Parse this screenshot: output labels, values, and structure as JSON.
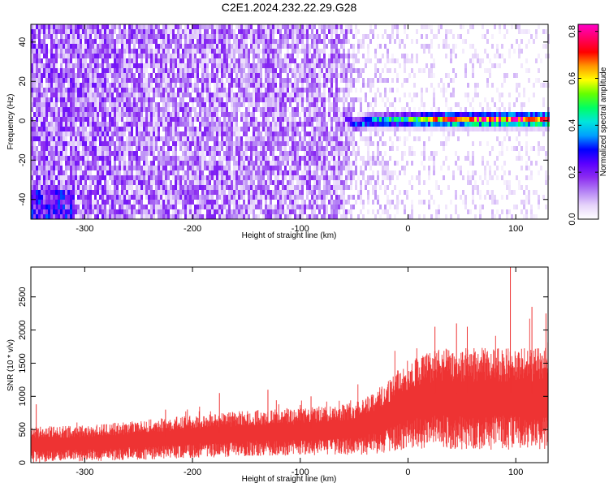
{
  "figure": {
    "title": "C2E1.2024.232.22.29.G28"
  },
  "chart_data": [
    {
      "type": "heatmap",
      "panel": "spectrogram",
      "xlabel": "Height of straight line (km)",
      "ylabel": "Frequency (Hz)",
      "xlim": [
        -350,
        130
      ],
      "ylim": [
        -50,
        49
      ],
      "xticks": [
        -300,
        -200,
        -100,
        0,
        100
      ],
      "yticks": [
        -40,
        -20,
        0,
        20,
        40
      ],
      "xtick_labels": [
        "-300",
        "-200",
        "-100",
        "0",
        "100"
      ],
      "ytick_labels": [
        "-40",
        "-20",
        "0",
        "20",
        "40"
      ],
      "colorbar": {
        "label": "Normalized spectral amplitude",
        "range": [
          0.0,
          0.83
        ],
        "ticks": [
          0.0,
          0.2,
          0.4,
          0.6,
          0.8
        ],
        "tick_labels": [
          "0.0",
          "0.2",
          "0.4",
          "0.6",
          "0.8"
        ],
        "colormap": [
          "#ffffff",
          "#e6d4fa",
          "#b482f5",
          "#8c2cf0",
          "#5a00ff",
          "#0000ff",
          "#00a0ff",
          "#00e6dc",
          "#00ff64",
          "#64ff00",
          "#ffff00",
          "#ff9600",
          "#ff0000",
          "#ff0064",
          "#ff00c8"
        ]
      },
      "features": {
        "noise_floor": [
          {
            "x": -350,
            "density": 0.95,
            "level": 0.18
          },
          {
            "x": -250,
            "density": 0.93,
            "level": 0.16
          },
          {
            "x": -150,
            "density": 0.9,
            "level": 0.15
          },
          {
            "x": -60,
            "density": 0.85,
            "level": 0.14
          },
          {
            "x": -45,
            "density": 0.5,
            "level": 0.09
          },
          {
            "x": 0,
            "density": 0.3,
            "level": 0.07
          },
          {
            "x": 130,
            "density": 0.25,
            "level": 0.06
          }
        ],
        "carrier_line": [
          {
            "x": -60,
            "freq": 3,
            "width": 2.0,
            "level": 0.22
          },
          {
            "x": -50,
            "freq": -2,
            "width": 3.0,
            "level": 0.3
          },
          {
            "x": -35,
            "freq": 0,
            "width": 3.0,
            "level": 0.4
          },
          {
            "x": 0,
            "freq": 0.5,
            "width": 3.0,
            "level": 0.5
          },
          {
            "x": 40,
            "freq": 0.5,
            "width": 3.0,
            "level": 0.7
          },
          {
            "x": 130,
            "freq": 0.5,
            "width": 3.0,
            "level": 0.75
          }
        ],
        "low_freq_blob": {
          "x_range": [
            -350,
            -310
          ],
          "freq_range": [
            -50,
            -35
          ],
          "level": 0.28
        }
      }
    },
    {
      "type": "area",
      "panel": "snr",
      "xlabel": "Height of straight line (km)",
      "ylabel": "SNR (10 * v/v)",
      "xlim": [
        -350,
        130
      ],
      "ylim": [
        0,
        2950
      ],
      "xticks": [
        -300,
        -200,
        -100,
        0,
        100
      ],
      "yticks": [
        0,
        500,
        1000,
        1500,
        2000,
        2500
      ],
      "xtick_labels": [
        "-300",
        "-200",
        "-100",
        "0",
        "100"
      ],
      "ytick_labels": [
        "0",
        "500",
        "1000",
        "1500",
        "2000",
        "2500"
      ],
      "color": "#ee3333",
      "series": [
        {
          "x": [
            -350,
            -300,
            -250,
            -200,
            -150,
            -100,
            -50,
            -25,
            0,
            25,
            50,
            75,
            100,
            130
          ],
          "mean": [
            300,
            320,
            370,
            430,
            480,
            500,
            560,
            700,
            950,
            1050,
            1050,
            1050,
            1050,
            1050
          ],
          "spread": [
            200,
            200,
            220,
            240,
            260,
            260,
            300,
            380,
            500,
            550,
            570,
            570,
            570,
            570
          ],
          "peaks": [
            {
              "x": -345,
              "y": 880
            },
            {
              "x": -225,
              "y": 800
            },
            {
              "x": -100,
              "y": 870
            },
            {
              "x": -130,
              "y": 1100
            },
            {
              "x": -175,
              "y": 1050
            },
            {
              "x": -90,
              "y": 1000
            },
            {
              "x": 25,
              "y": 2050
            },
            {
              "x": 45,
              "y": 2100
            },
            {
              "x": 55,
              "y": 2050
            },
            {
              "x": 95,
              "y": 2950
            },
            {
              "x": 115,
              "y": 2350
            },
            {
              "x": 128,
              "y": 2250
            }
          ]
        }
      ]
    }
  ]
}
